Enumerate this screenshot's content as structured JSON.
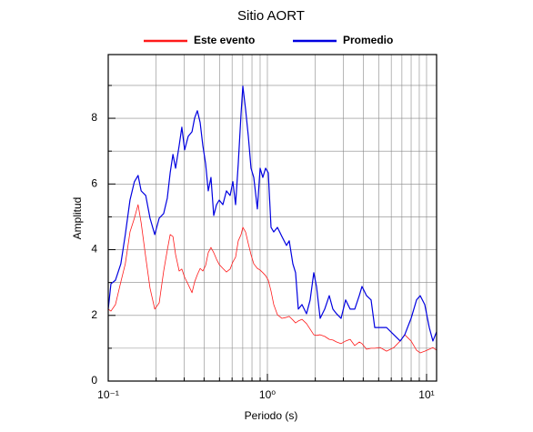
{
  "chart_data": {
    "type": "line",
    "title": "Sitio AORT",
    "xlabel": "Periodo (s)",
    "ylabel": "Amplitud",
    "xscale": "log",
    "xlim": [
      0.1,
      11.56
    ],
    "ylim": [
      0,
      9.94
    ],
    "xticks": [
      {
        "value": 0.1,
        "label": "10⁻¹"
      },
      {
        "value": 1,
        "label": "10⁰"
      },
      {
        "value": 10,
        "label": "10¹"
      }
    ],
    "xminorticks": [
      0.2,
      0.3,
      0.4,
      0.5,
      0.6,
      0.7,
      0.8,
      0.9,
      2,
      3,
      4,
      5,
      6,
      7,
      8,
      9
    ],
    "yticks": [
      0,
      2,
      4,
      6,
      8
    ],
    "yminorticks": [
      1,
      3,
      5,
      7,
      9
    ],
    "grid": true,
    "legend": "top",
    "x": [
      0.1,
      0.104,
      0.111,
      0.12,
      0.128,
      0.137,
      0.146,
      0.154,
      0.161,
      0.172,
      0.183,
      0.196,
      0.209,
      0.223,
      0.235,
      0.245,
      0.255,
      0.265,
      0.279,
      0.29,
      0.302,
      0.318,
      0.336,
      0.349,
      0.363,
      0.378,
      0.393,
      0.409,
      0.425,
      0.442,
      0.46,
      0.479,
      0.498,
      0.525,
      0.553,
      0.583,
      0.607,
      0.631,
      0.656,
      0.683,
      0.701,
      0.729,
      0.759,
      0.789,
      0.821,
      0.865,
      0.9,
      0.936,
      0.974,
      1.013,
      1.054,
      1.096,
      1.156,
      1.234,
      1.318,
      1.371,
      1.445,
      1.503,
      1.564,
      1.649,
      1.761,
      1.856,
      1.956,
      2.035,
      2.145,
      2.291,
      2.447,
      2.579,
      2.718,
      2.903,
      3.1,
      3.311,
      3.537,
      3.777,
      3.929,
      4.197,
      4.482,
      4.724,
      5.112,
      5.606,
      6.228,
      6.829,
      7.293,
      7.995,
      8.65,
      9.12,
      9.741,
      10.4,
      10.96,
      11.56
    ],
    "series": [
      {
        "name": "Este evento",
        "color": "#ff1a1a",
        "values": [
          2.19,
          2.13,
          2.33,
          3.02,
          3.57,
          4.54,
          4.96,
          5.37,
          4.82,
          3.77,
          2.83,
          2.19,
          2.38,
          3.35,
          3.99,
          4.46,
          4.4,
          3.85,
          3.35,
          3.41,
          3.16,
          2.94,
          2.69,
          3.02,
          3.24,
          3.43,
          3.35,
          3.52,
          3.91,
          4.07,
          3.91,
          3.71,
          3.55,
          3.43,
          3.32,
          3.41,
          3.63,
          3.77,
          4.27,
          4.46,
          4.68,
          4.54,
          4.18,
          3.85,
          3.57,
          3.43,
          3.38,
          3.3,
          3.21,
          3.07,
          2.74,
          2.33,
          2.02,
          1.91,
          1.94,
          1.97,
          1.86,
          1.77,
          1.83,
          1.88,
          1.75,
          1.58,
          1.41,
          1.39,
          1.41,
          1.36,
          1.27,
          1.25,
          1.19,
          1.14,
          1.22,
          1.27,
          1.08,
          1.19,
          1.14,
          0.97,
          1.0,
          1.0,
          1.02,
          0.91,
          1.02,
          1.22,
          1.41,
          1.22,
          0.94,
          0.86,
          0.91,
          0.97,
          1.02,
          0.94
        ]
      },
      {
        "name": "Promedio",
        "color": "#0000e0",
        "values": [
          2.19,
          2.96,
          3.07,
          3.57,
          4.46,
          5.51,
          6.07,
          6.26,
          5.79,
          5.65,
          4.96,
          4.46,
          4.96,
          5.1,
          5.57,
          6.34,
          6.9,
          6.48,
          7.17,
          7.73,
          7.04,
          7.45,
          7.59,
          8.01,
          8.23,
          7.87,
          7.17,
          6.62,
          5.79,
          6.2,
          5.04,
          5.37,
          5.51,
          5.37,
          5.79,
          5.65,
          6.07,
          5.37,
          6.62,
          8.14,
          8.98,
          8.28,
          7.45,
          6.48,
          6.2,
          5.24,
          6.48,
          6.2,
          6.48,
          6.34,
          4.68,
          4.54,
          4.68,
          4.4,
          4.13,
          4.27,
          3.57,
          3.3,
          2.19,
          2.33,
          2.05,
          2.47,
          3.3,
          2.88,
          1.91,
          2.19,
          2.6,
          2.19,
          2.05,
          1.91,
          2.47,
          2.19,
          2.19,
          2.6,
          2.88,
          2.6,
          2.47,
          1.63,
          1.63,
          1.63,
          1.41,
          1.22,
          1.41,
          1.91,
          2.47,
          2.6,
          2.33,
          1.63,
          1.22,
          1.5
        ]
      }
    ]
  }
}
